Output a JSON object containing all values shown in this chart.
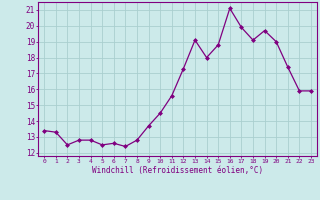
{
  "x": [
    0,
    1,
    2,
    3,
    4,
    5,
    6,
    7,
    8,
    9,
    10,
    11,
    12,
    13,
    14,
    15,
    16,
    17,
    18,
    19,
    20,
    21,
    22,
    23
  ],
  "y": [
    13.4,
    13.3,
    12.5,
    12.8,
    12.8,
    12.5,
    12.6,
    12.4,
    12.8,
    13.7,
    14.5,
    15.6,
    17.3,
    19.1,
    18.0,
    18.8,
    21.1,
    19.9,
    19.1,
    19.7,
    19.0,
    17.4,
    15.9,
    15.9
  ],
  "line_color": "#800080",
  "marker": "D",
  "marker_size": 2.0,
  "bg_color": "#cceaea",
  "grid_color": "#aacfcf",
  "xlabel": "Windchill (Refroidissement éolien,°C)",
  "xlabel_color": "#800080",
  "ylabel_ticks": [
    12,
    13,
    14,
    15,
    16,
    17,
    18,
    19,
    20,
    21
  ],
  "xlim": [
    -0.5,
    23.5
  ],
  "ylim": [
    11.8,
    21.5
  ],
  "tick_color": "#800080",
  "axis_color": "#800080"
}
